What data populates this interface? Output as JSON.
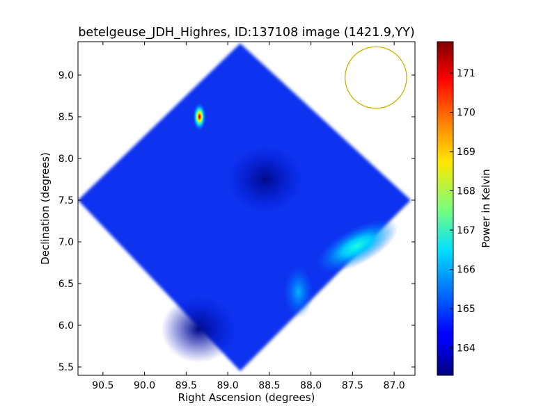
{
  "chart_data": {
    "type": "heatmap",
    "title": "betelgeuse_JDH_Highres, ID:137108 image (1421.9,YY)",
    "xlabel": "Right Ascension (degrees)",
    "ylabel": "Declination (degrees)",
    "xlim": [
      90.8,
      86.75
    ],
    "ylim": [
      5.4,
      9.4
    ],
    "x_ticks": [
      90.5,
      90.0,
      89.5,
      89.0,
      88.5,
      88.0,
      87.5,
      87.0
    ],
    "x_tick_labels": [
      "90.5",
      "90.0",
      "89.5",
      "89.0",
      "88.5",
      "88.0",
      "87.5",
      "87.0"
    ],
    "y_ticks": [
      5.5,
      6.0,
      6.5,
      7.0,
      7.5,
      8.0,
      8.5,
      9.0
    ],
    "y_tick_labels": [
      "5.5",
      "6.0",
      "6.5",
      "7.0",
      "7.5",
      "8.0",
      "8.5",
      "9.0"
    ],
    "colorbar": {
      "label": "Power in Kelvin",
      "range": [
        163.3,
        171.8
      ],
      "colormap": "jet",
      "ticks": [
        164,
        165,
        166,
        167,
        168,
        169,
        170,
        171
      ],
      "tick_labels": [
        "164",
        "165",
        "166",
        "167",
        "168",
        "169",
        "170",
        "171"
      ]
    },
    "map_region": {
      "shape": "diamond",
      "vertices_deg": [
        [
          88.85,
          9.38
        ],
        [
          86.8,
          7.5
        ],
        [
          88.85,
          5.45
        ],
        [
          90.8,
          7.5
        ]
      ]
    },
    "background_level": 164.5,
    "features": [
      {
        "kind": "peak",
        "ra": 89.34,
        "dec": 8.5,
        "value": 171.8
      },
      {
        "kind": "ridge",
        "ra": 87.45,
        "dec": 6.95,
        "value": 166.2
      },
      {
        "kind": "bump",
        "ra": 88.15,
        "dec": 6.4,
        "value": 165.7
      },
      {
        "kind": "trough",
        "ra": 88.55,
        "dec": 7.75,
        "value": 163.6
      },
      {
        "kind": "trough",
        "ra": 89.35,
        "dec": 5.95,
        "value": 163.7
      }
    ],
    "beam": {
      "ra": 87.22,
      "dec": 8.97,
      "radius_deg": 0.37,
      "color": "#c8b400"
    }
  }
}
